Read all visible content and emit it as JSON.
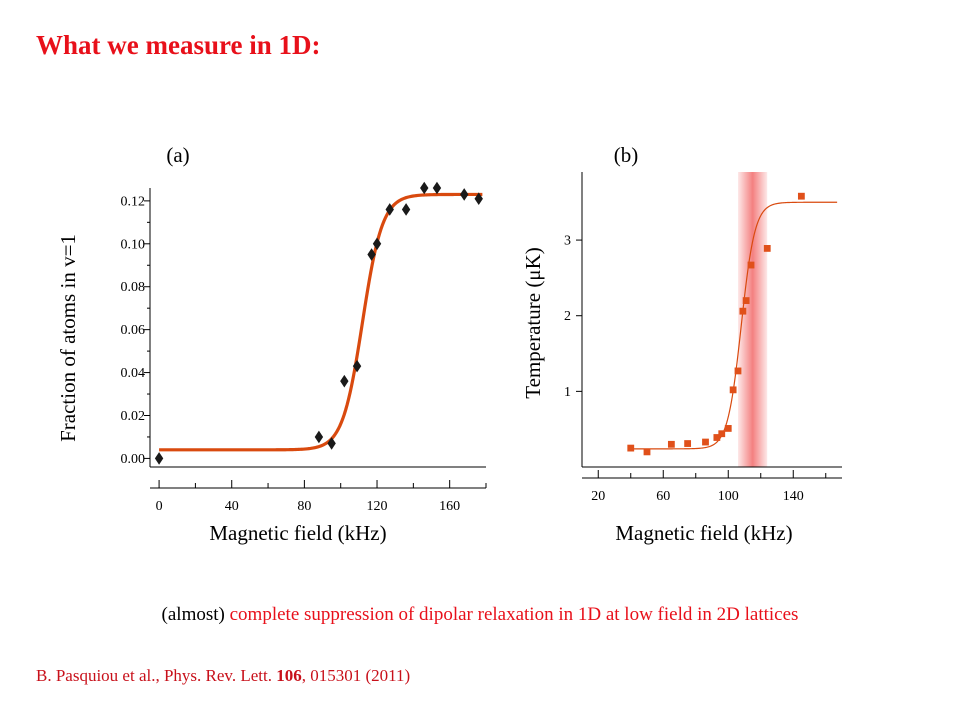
{
  "title": "What we measure in 1D:",
  "chart_data": [
    {
      "type": "scatter",
      "panel_label": "(a)",
      "xlabel": "Magnetic field (kHz)",
      "ylabel": "Fraction of atoms in v=1",
      "xlim": [
        -5,
        180
      ],
      "ylim": [
        -0.004,
        0.126
      ],
      "x_ticks": [
        0,
        40,
        80,
        120,
        160
      ],
      "x_tick_labels": [
        "0",
        "40",
        "80",
        "120",
        "160"
      ],
      "y_ticks": [
        0.0,
        0.02,
        0.04,
        0.06,
        0.08,
        0.1,
        0.12
      ],
      "y_tick_labels": [
        "0.00",
        "0.02",
        "0.04",
        "0.06",
        "0.08",
        "0.10",
        "0.12"
      ],
      "colors": {
        "markers": "#1a1a1a",
        "fit": "#d94a0f"
      },
      "series": [
        {
          "x": [
            0,
            88,
            95,
            102,
            109,
            117,
            120,
            127,
            136,
            146,
            153,
            168,
            176
          ],
          "y": [
            0.0,
            0.01,
            0.007,
            0.036,
            0.043,
            0.095,
            0.1,
            0.116,
            0.116,
            0.126,
            0.126,
            0.123,
            0.121
          ]
        }
      ],
      "fit": {
        "x0": 112,
        "width": 5.5,
        "low": 0.004,
        "high": 0.123,
        "x_range": [
          0,
          178
        ]
      }
    },
    {
      "type": "scatter",
      "panel_label": "(b)",
      "xlabel": "Magnetic field (kHz)",
      "ylabel": "Temperature (μK)",
      "xlim": [
        10,
        170
      ],
      "ylim": [
        0,
        3.9
      ],
      "x_ticks": [
        20,
        60,
        100,
        140
      ],
      "x_tick_labels": [
        "20",
        "60",
        "100",
        "140"
      ],
      "y_ticks": [
        1,
        2,
        3
      ],
      "y_tick_labels": [
        "1",
        "2",
        "3"
      ],
      "shaded_band": [
        106,
        124
      ],
      "colors": {
        "markers": "#e0501a",
        "fit": "#d94a0f",
        "band": "#f26a6a"
      },
      "series": [
        {
          "x": [
            40,
            50,
            65,
            75,
            86,
            93,
            96,
            100,
            103,
            106,
            109,
            111,
            114,
            124,
            145
          ],
          "y": [
            0.25,
            0.2,
            0.3,
            0.31,
            0.33,
            0.39,
            0.44,
            0.51,
            1.02,
            1.27,
            2.06,
            2.2,
            2.67,
            2.89,
            3.58
          ]
        }
      ],
      "fit": {
        "x0": 108,
        "width": 4.2,
        "low": 0.24,
        "high": 3.5,
        "x_range": [
          38,
          167
        ]
      }
    }
  ],
  "caption": {
    "prefix": "(almost) ",
    "highlight": "complete suppression of dipolar relaxation in 1D at low field in 2D lattices"
  },
  "reference": {
    "before": "B. Pasquiou et al., Phys. Rev. Lett. ",
    "volume": "106",
    "after": ", 015301 (2011)"
  }
}
